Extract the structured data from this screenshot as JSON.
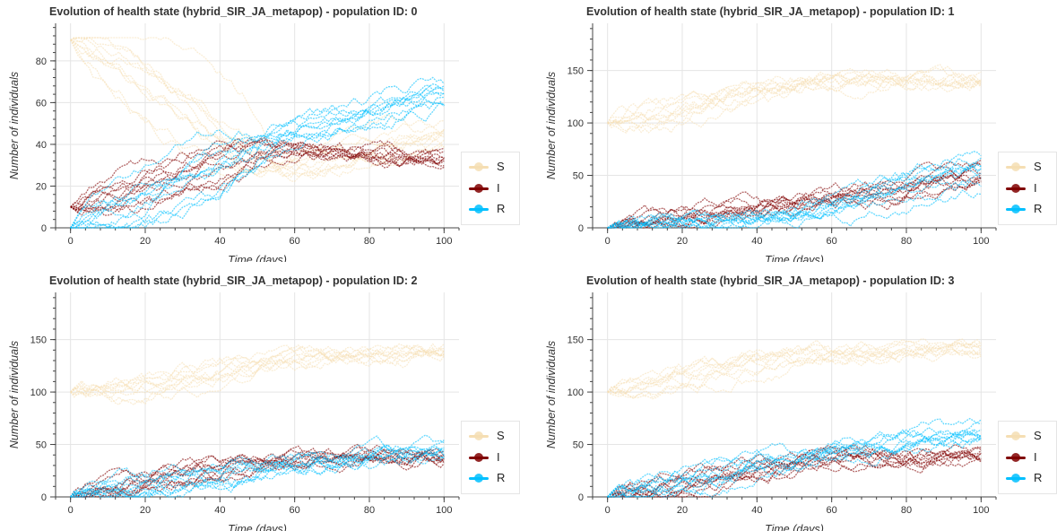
{
  "colors": {
    "S": "#f5deb3",
    "I": "#800000",
    "R": "#00bfff",
    "grid": "#e5e5e5",
    "axis": "#444444"
  },
  "chart_data": [
    {
      "type": "line",
      "title": "Evolution of health state (hybrid_SIR_JA_metapop) - population ID: 0",
      "xlabel": "Time (days)",
      "ylabel": "Number of individuals",
      "xlim": [
        -4,
        104
      ],
      "ylim": [
        0,
        98
      ],
      "xticks": [
        0,
        20,
        40,
        60,
        80,
        100
      ],
      "yticks": [
        0,
        20,
        40,
        60,
        80
      ],
      "legend": [
        "S",
        "I",
        "R"
      ],
      "legend_position": "right",
      "grid": true,
      "series": [
        {
          "name": "S",
          "start": 90,
          "mid": 25,
          "end": 45
        },
        {
          "name": "I",
          "start": 10,
          "mid": 40,
          "end": 32
        },
        {
          "name": "R",
          "start": 0,
          "mid": 45,
          "end": 68
        }
      ]
    },
    {
      "type": "line",
      "title": "Evolution of health state (hybrid_SIR_JA_metapop) - population ID: 1",
      "xlabel": "Time (days)",
      "ylabel": "Number of individuals",
      "xlim": [
        -4,
        104
      ],
      "ylim": [
        0,
        195
      ],
      "xticks": [
        0,
        20,
        40,
        60,
        80,
        100
      ],
      "yticks": [
        0,
        50,
        100,
        150
      ],
      "legend": [
        "S",
        "I",
        "R"
      ],
      "legend_position": "right",
      "grid": true,
      "series": [
        {
          "name": "S",
          "start": 100,
          "mid": 140,
          "end": 140
        },
        {
          "name": "I",
          "start": 0,
          "mid": 25,
          "end": 50
        },
        {
          "name": "R",
          "start": 0,
          "mid": 10,
          "end": 60
        }
      ]
    },
    {
      "type": "line",
      "title": "Evolution of health state (hybrid_SIR_JA_metapop) - population ID: 2",
      "xlabel": "Time (days)",
      "ylabel": "Number of individuals",
      "xlim": [
        -4,
        104
      ],
      "ylim": [
        0,
        195
      ],
      "xticks": [
        0,
        20,
        40,
        60,
        80,
        100
      ],
      "yticks": [
        0,
        50,
        100,
        150
      ],
      "legend": [
        "S",
        "I",
        "R"
      ],
      "legend_position": "right",
      "grid": true,
      "series": [
        {
          "name": "S",
          "start": 100,
          "mid": 130,
          "end": 140
        },
        {
          "name": "I",
          "start": 0,
          "mid": 35,
          "end": 40
        },
        {
          "name": "R",
          "start": 0,
          "mid": 30,
          "end": 45
        }
      ]
    },
    {
      "type": "line",
      "title": "Evolution of health state (hybrid_SIR_JA_metapop) - population ID: 3",
      "xlabel": "Time (days)",
      "ylabel": "Number of individuals",
      "xlim": [
        -4,
        104
      ],
      "ylim": [
        0,
        195
      ],
      "xticks": [
        0,
        20,
        40,
        60,
        80,
        100
      ],
      "yticks": [
        0,
        50,
        100,
        150
      ],
      "legend": [
        "S",
        "I",
        "R"
      ],
      "legend_position": "right",
      "grid": true,
      "series": [
        {
          "name": "S",
          "start": 100,
          "mid": 135,
          "end": 140
        },
        {
          "name": "I",
          "start": 0,
          "mid": 35,
          "end": 40
        },
        {
          "name": "R",
          "start": 0,
          "mid": 40,
          "end": 65
        }
      ]
    }
  ]
}
